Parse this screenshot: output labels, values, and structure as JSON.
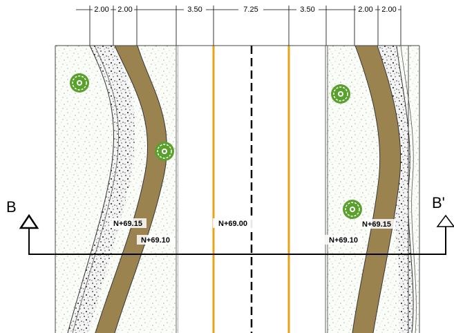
{
  "dimensions": {
    "left_1": "2.00",
    "left_2": "2.00",
    "lane_left": "3.50",
    "median": "7.25",
    "lane_right": "3.50",
    "right_1": "2.00",
    "right_2": "2.00"
  },
  "levels": {
    "left_outer": "N+69.15",
    "left_inner": "N+69.10",
    "center": "N+69.00",
    "right_inner": "N+69.10",
    "right_outer": "N+69.15"
  },
  "section": {
    "start": "B",
    "end": "B'"
  },
  "colors": {
    "lane_line": "#e8a317",
    "bike_path": "#9b8350",
    "tree": "#5aa02c"
  },
  "icons": {
    "tree": "tree-icon",
    "section_marker": "triangle-marker-icon"
  }
}
